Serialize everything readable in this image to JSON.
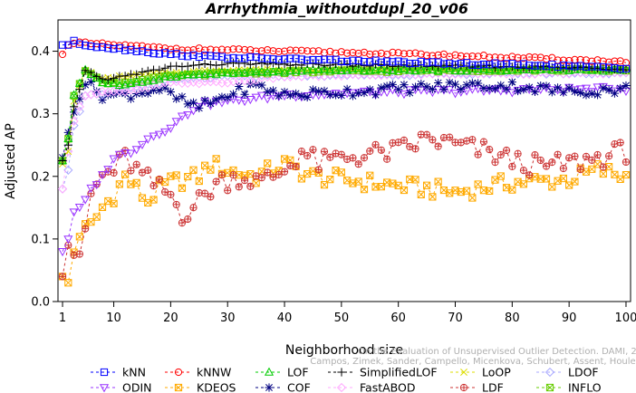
{
  "chart_data": {
    "type": "line",
    "title": "Arrhythmia_withoutdupl_20_v06",
    "xlabel": "Neighborhood size",
    "ylabel": "Adjusted AP",
    "xlim": [
      1,
      100
    ],
    "ylim": [
      0.0,
      0.45
    ],
    "xticks": [
      1,
      10,
      20,
      30,
      40,
      50,
      60,
      70,
      80,
      90,
      100
    ],
    "yticks": [
      0.0,
      0.1,
      0.2,
      0.3,
      0.4
    ],
    "ytick_labels": [
      "0.0",
      "0.1",
      "0.2",
      "0.3",
      "0.4"
    ],
    "legend_position": "bottom",
    "credit": "Campos, Zimek, Sander, Campello, Micenkova, Schubert, Assent, Houle",
    "credit_line1": "On the Evaluation of Unsupervised Outlier Detection. DAMI, 2015.",
    "series": [
      {
        "name": "kNN",
        "color": "#0000ff",
        "marker": "square",
        "anchors": [
          [
            1,
            0.41
          ],
          [
            2,
            0.41
          ],
          [
            3,
            0.415
          ],
          [
            5,
            0.41
          ],
          [
            10,
            0.405
          ],
          [
            20,
            0.395
          ],
          [
            30,
            0.39
          ],
          [
            50,
            0.385
          ],
          [
            70,
            0.38
          ],
          [
            85,
            0.378
          ],
          [
            100,
            0.372
          ]
        ]
      },
      {
        "name": "kNNW",
        "color": "#ff0000",
        "marker": "circle",
        "anchors": [
          [
            1,
            0.395
          ],
          [
            2,
            0.41
          ],
          [
            4,
            0.413
          ],
          [
            10,
            0.41
          ],
          [
            20,
            0.404
          ],
          [
            40,
            0.4
          ],
          [
            60,
            0.396
          ],
          [
            80,
            0.39
          ],
          [
            100,
            0.383
          ]
        ]
      },
      {
        "name": "LOF",
        "color": "#00cc00",
        "marker": "triangle-up",
        "anchors": [
          [
            1,
            0.225
          ],
          [
            2,
            0.26
          ],
          [
            3,
            0.33
          ],
          [
            5,
            0.37
          ],
          [
            8,
            0.35
          ],
          [
            12,
            0.345
          ],
          [
            20,
            0.36
          ],
          [
            30,
            0.365
          ],
          [
            50,
            0.37
          ],
          [
            80,
            0.37
          ],
          [
            100,
            0.37
          ]
        ]
      },
      {
        "name": "SimplifiedLOF",
        "color": "#000000",
        "marker": "plus",
        "anchors": [
          [
            1,
            0.225
          ],
          [
            2,
            0.25
          ],
          [
            3,
            0.31
          ],
          [
            5,
            0.37
          ],
          [
            8,
            0.355
          ],
          [
            12,
            0.36
          ],
          [
            20,
            0.375
          ],
          [
            30,
            0.38
          ],
          [
            50,
            0.378
          ],
          [
            80,
            0.375
          ],
          [
            100,
            0.372
          ]
        ]
      },
      {
        "name": "LoOP",
        "color": "#dddd00",
        "marker": "x",
        "anchors": [
          [
            1,
            0.22
          ],
          [
            2,
            0.24
          ],
          [
            3,
            0.32
          ],
          [
            5,
            0.37
          ],
          [
            8,
            0.355
          ],
          [
            12,
            0.36
          ],
          [
            20,
            0.365
          ],
          [
            30,
            0.37
          ],
          [
            50,
            0.37
          ],
          [
            80,
            0.372
          ],
          [
            100,
            0.37
          ]
        ]
      },
      {
        "name": "LDOF",
        "color": "#aaaaff",
        "marker": "diamond",
        "anchors": [
          [
            1,
            0.18
          ],
          [
            2,
            0.21
          ],
          [
            3,
            0.28
          ],
          [
            5,
            0.33
          ],
          [
            8,
            0.33
          ],
          [
            12,
            0.34
          ],
          [
            20,
            0.355
          ],
          [
            30,
            0.36
          ],
          [
            50,
            0.362
          ],
          [
            80,
            0.365
          ],
          [
            100,
            0.365
          ]
        ]
      },
      {
        "name": "ODIN",
        "color": "#9933ff",
        "marker": "triangle-down",
        "anchors": [
          [
            1,
            0.08
          ],
          [
            2,
            0.1
          ],
          [
            3,
            0.14
          ],
          [
            5,
            0.16
          ],
          [
            6,
            0.18
          ],
          [
            8,
            0.2
          ],
          [
            10,
            0.23
          ],
          [
            13,
            0.24
          ],
          [
            16,
            0.26
          ],
          [
            20,
            0.28
          ],
          [
            25,
            0.315
          ],
          [
            30,
            0.32
          ],
          [
            40,
            0.33
          ],
          [
            60,
            0.335
          ],
          [
            80,
            0.338
          ],
          [
            100,
            0.34
          ]
        ]
      },
      {
        "name": "KDEOS",
        "color": "#ffaa00",
        "marker": "square-x",
        "anchors": [
          [
            1,
            0.04
          ],
          [
            2,
            0.03
          ],
          [
            3,
            0.08
          ],
          [
            4,
            0.11
          ],
          [
            6,
            0.12
          ],
          [
            8,
            0.15
          ],
          [
            10,
            0.17
          ],
          [
            12,
            0.2
          ],
          [
            14,
            0.18
          ],
          [
            16,
            0.16
          ],
          [
            18,
            0.18
          ],
          [
            20,
            0.19
          ],
          [
            25,
            0.2
          ],
          [
            27,
            0.22
          ],
          [
            30,
            0.21
          ],
          [
            35,
            0.2
          ],
          [
            40,
            0.22
          ],
          [
            45,
            0.2
          ],
          [
            50,
            0.195
          ],
          [
            60,
            0.185
          ],
          [
            70,
            0.175
          ],
          [
            80,
            0.19
          ],
          [
            90,
            0.195
          ],
          [
            95,
            0.21
          ],
          [
            100,
            0.2
          ]
        ]
      },
      {
        "name": "COF",
        "color": "#000080",
        "marker": "asterisk",
        "anchors": [
          [
            1,
            0.23
          ],
          [
            2,
            0.27
          ],
          [
            3,
            0.31
          ],
          [
            5,
            0.35
          ],
          [
            8,
            0.33
          ],
          [
            12,
            0.33
          ],
          [
            18,
            0.34
          ],
          [
            22,
            0.32
          ],
          [
            25,
            0.31
          ],
          [
            30,
            0.33
          ],
          [
            35,
            0.345
          ],
          [
            40,
            0.33
          ],
          [
            50,
            0.335
          ],
          [
            60,
            0.34
          ],
          [
            70,
            0.345
          ],
          [
            80,
            0.345
          ],
          [
            90,
            0.335
          ],
          [
            100,
            0.34
          ]
        ]
      },
      {
        "name": "FastABOD",
        "color": "#ffaaff",
        "marker": "diamond",
        "anchors": [
          [
            1,
            0.18
          ],
          [
            2,
            0.24
          ],
          [
            3,
            0.29
          ],
          [
            5,
            0.33
          ],
          [
            8,
            0.335
          ],
          [
            12,
            0.335
          ],
          [
            20,
            0.35
          ],
          [
            30,
            0.35
          ],
          [
            40,
            0.36
          ],
          [
            60,
            0.363
          ],
          [
            80,
            0.365
          ],
          [
            100,
            0.365
          ]
        ]
      },
      {
        "name": "LDF",
        "color": "#cc3333",
        "marker": "circle-plus",
        "anchors": [
          [
            1,
            0.04
          ],
          [
            2,
            0.09
          ],
          [
            3,
            0.08
          ],
          [
            4,
            0.06
          ],
          [
            6,
            0.17
          ],
          [
            8,
            0.2
          ],
          [
            10,
            0.21
          ],
          [
            12,
            0.23
          ],
          [
            15,
            0.2
          ],
          [
            18,
            0.18
          ],
          [
            20,
            0.17
          ],
          [
            22,
            0.14
          ],
          [
            25,
            0.16
          ],
          [
            28,
            0.19
          ],
          [
            32,
            0.2
          ],
          [
            36,
            0.19
          ],
          [
            40,
            0.21
          ],
          [
            43,
            0.24
          ],
          [
            46,
            0.22
          ],
          [
            50,
            0.23
          ],
          [
            55,
            0.235
          ],
          [
            60,
            0.24
          ],
          [
            65,
            0.26
          ],
          [
            70,
            0.25
          ],
          [
            75,
            0.24
          ],
          [
            80,
            0.225
          ],
          [
            85,
            0.215
          ],
          [
            90,
            0.22
          ],
          [
            95,
            0.23
          ],
          [
            100,
            0.24
          ]
        ]
      },
      {
        "name": "INFLO",
        "color": "#66cc00",
        "marker": "square-x",
        "anchors": [
          [
            1,
            0.225
          ],
          [
            2,
            0.26
          ],
          [
            3,
            0.33
          ],
          [
            5,
            0.37
          ],
          [
            8,
            0.35
          ],
          [
            12,
            0.35
          ],
          [
            20,
            0.36
          ],
          [
            30,
            0.365
          ],
          [
            50,
            0.368
          ],
          [
            80,
            0.37
          ],
          [
            100,
            0.37
          ]
        ]
      }
    ],
    "legend_order": [
      "kNN",
      "kNNW",
      "LOF",
      "SimplifiedLOF",
      "LoOP",
      "LDOF",
      "ODIN",
      "KDEOS",
      "COF",
      "FastABOD",
      "LDF",
      "INFLO"
    ]
  }
}
